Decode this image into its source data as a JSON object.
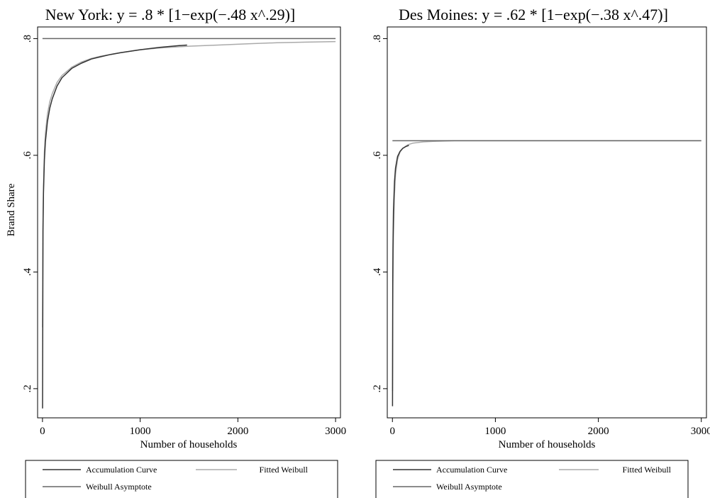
{
  "chart_data": [
    {
      "type": "line",
      "title": "New York: y = .8 * [1−exp(−.48 x^.29)]",
      "xlabel": "Number of households",
      "ylabel": "Brand Share",
      "xlim": [
        -50,
        3050
      ],
      "ylim": [
        0.15,
        0.82
      ],
      "x_ticks": [
        0,
        1000,
        2000,
        3000
      ],
      "x_tick_labels": [
        "0",
        "1000",
        "2000",
        "3000"
      ],
      "y_ticks": [
        0.2,
        0.4,
        0.6,
        0.8
      ],
      "y_tick_labels": [
        ".2",
        ".4",
        ".6",
        ".8"
      ],
      "grid": false,
      "legend_position": "bottom",
      "series": [
        {
          "name": "Accumulation Curve",
          "color": "#333333",
          "x": [
            1,
            5,
            10,
            20,
            30,
            50,
            75,
            100,
            150,
            200,
            300,
            400,
            500,
            600,
            700,
            800,
            1000,
            1200,
            1400,
            1480
          ],
          "y": [
            0.166,
            0.47,
            0.535,
            0.592,
            0.623,
            0.657,
            0.681,
            0.697,
            0.719,
            0.733,
            0.749,
            0.758,
            0.765,
            0.769,
            0.773,
            0.776,
            0.781,
            0.785,
            0.788,
            0.789
          ]
        },
        {
          "name": "Fitted Weibull",
          "color": "#aaaaaa",
          "x": [
            1,
            5,
            10,
            20,
            30,
            50,
            75,
            100,
            150,
            200,
            300,
            400,
            500,
            600,
            700,
            800,
            1000,
            1200,
            1500,
            1800,
            2100,
            2400,
            2700,
            3000
          ],
          "y": [
            0.305,
            0.48,
            0.548,
            0.607,
            0.637,
            0.67,
            0.692,
            0.706,
            0.725,
            0.737,
            0.751,
            0.76,
            0.766,
            0.77,
            0.773,
            0.776,
            0.781,
            0.784,
            0.787,
            0.789,
            0.791,
            0.793,
            0.794,
            0.795
          ]
        },
        {
          "name": "Weibull Asymptote",
          "color": "#666666",
          "x": [
            0,
            3000
          ],
          "y": [
            0.8,
            0.8
          ]
        }
      ]
    },
    {
      "type": "line",
      "title": "Des Moines: y = .62 * [1−exp(−.38 x^.47)]",
      "xlabel": "Number of households",
      "ylabel": "",
      "xlim": [
        -50,
        3050
      ],
      "ylim": [
        0.15,
        0.82
      ],
      "x_ticks": [
        0,
        1000,
        2000,
        3000
      ],
      "x_tick_labels": [
        "0",
        "1000",
        "2000",
        "3000"
      ],
      "y_ticks": [
        0.2,
        0.4,
        0.6,
        0.8
      ],
      "y_tick_labels": [
        ".2",
        ".4",
        ".6",
        ".8"
      ],
      "grid": false,
      "legend_position": "bottom",
      "series": [
        {
          "name": "Accumulation Curve",
          "color": "#333333",
          "x": [
            1,
            3,
            5,
            10,
            20,
            30,
            50,
            75,
            100,
            130,
            160
          ],
          "y": [
            0.17,
            0.38,
            0.44,
            0.505,
            0.555,
            0.578,
            0.598,
            0.607,
            0.612,
            0.615,
            0.617
          ]
        },
        {
          "name": "Fitted Weibull",
          "color": "#aaaaaa",
          "x": [
            1,
            3,
            5,
            10,
            20,
            30,
            50,
            75,
            100,
            150,
            200,
            300,
            400,
            600,
            1000,
            2000,
            3000
          ],
          "y": [
            0.196,
            0.32,
            0.38,
            0.46,
            0.534,
            0.567,
            0.593,
            0.606,
            0.612,
            0.618,
            0.621,
            0.623,
            0.624,
            0.625,
            0.625,
            0.625,
            0.625
          ]
        },
        {
          "name": "Weibull Asymptote",
          "color": "#666666",
          "x": [
            0,
            3000
          ],
          "y": [
            0.625,
            0.625
          ]
        }
      ]
    }
  ]
}
